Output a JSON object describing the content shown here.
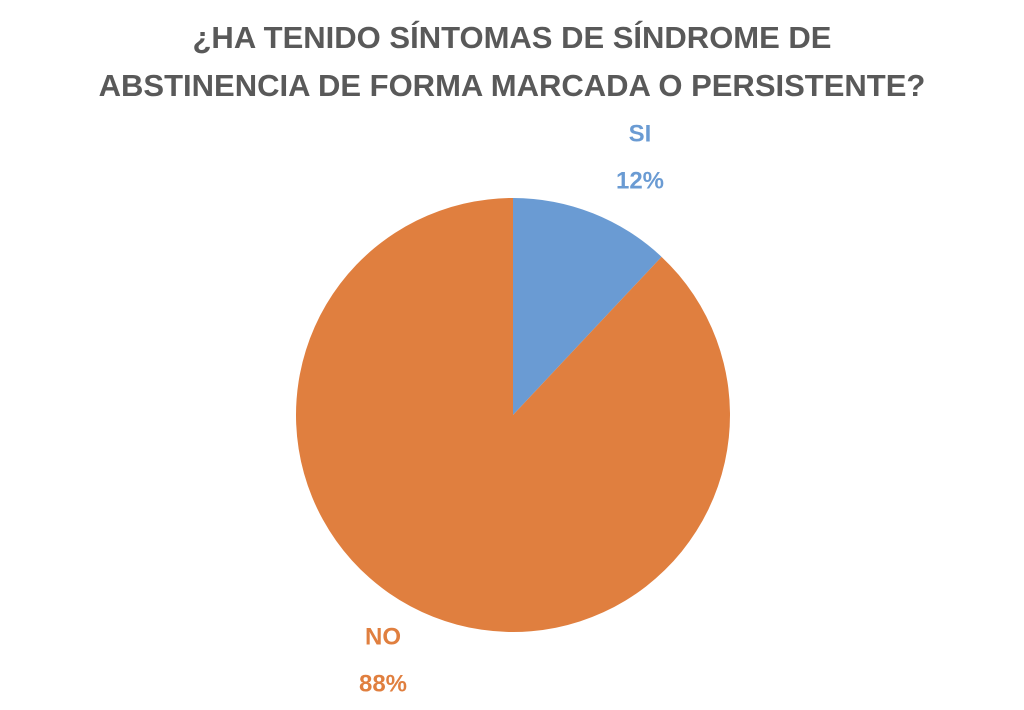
{
  "chart_data": {
    "type": "pie",
    "title": "¿HA TENIDO SÍNTOMAS DE SÍNDROME DE ABSTINENCIA DE FORMA MARCADA O PERSISTENTE?",
    "categories": [
      "SI",
      "NO"
    ],
    "values": [
      12,
      88
    ],
    "value_labels": [
      "12%",
      "88%"
    ],
    "colors": [
      "#6a9bd3",
      "#e07f3f"
    ]
  }
}
